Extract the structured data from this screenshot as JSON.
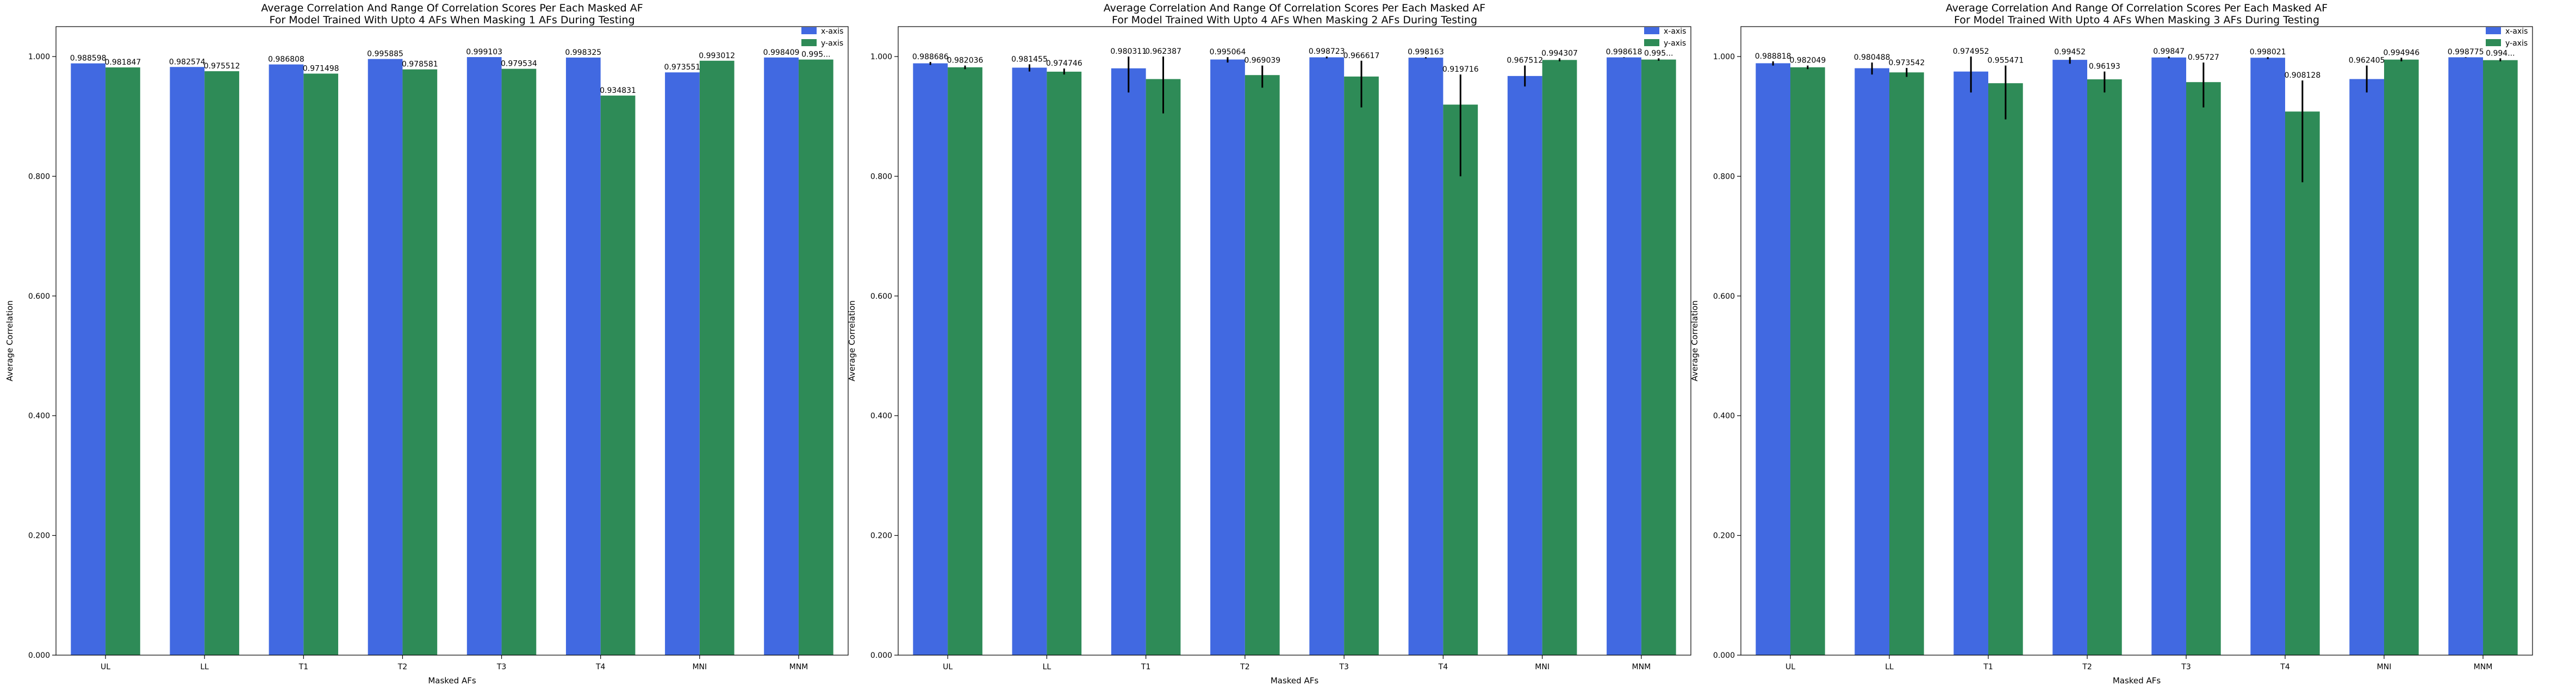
{
  "chart_data": [
    {
      "type": "bar",
      "title": "Average Correlation And Range Of Correlation Scores Per Each Masked AF",
      "subtitle": "For Model Trained With Upto 4 AFs When Masking 1 AFs During Testing",
      "xlabel": "Masked AFs",
      "ylabel": "Average Correlation",
      "ylim": [
        0,
        1.05
      ],
      "yticks": [
        "0.000",
        "0.200",
        "0.400",
        "0.600",
        "0.800",
        "1.000"
      ],
      "legend_position": "top-right",
      "categories": [
        "UL",
        "LL",
        "T1",
        "T2",
        "T3",
        "T4",
        "MNI",
        "MNM"
      ],
      "series": [
        {
          "name": "x-axis",
          "color": "#4169e1",
          "values": [
            0.988598,
            0.982574,
            0.986808,
            0.995885,
            0.999103,
            0.998325,
            0.973551,
            0.998409
          ],
          "labels": [
            "0.988598",
            "0.982574",
            "0.986808",
            "0.995885",
            "0.999103",
            "0.998325",
            "0.973551",
            "0.998409"
          ],
          "err_low": [
            0.988598,
            0.982574,
            0.986808,
            0.995885,
            0.999103,
            0.998325,
            0.973551,
            0.998409
          ],
          "err_high": [
            0.988598,
            0.982574,
            0.986808,
            0.995885,
            0.999103,
            0.998325,
            0.973551,
            0.998409
          ]
        },
        {
          "name": "y-axis",
          "color": "#2e8b57",
          "values": [
            0.981847,
            0.975512,
            0.971498,
            0.978581,
            0.979534,
            0.934831,
            0.993012,
            0.995
          ],
          "labels": [
            "0.981847",
            "0.975512",
            "0.971498",
            "0.978581",
            "0.979534",
            "0.934831",
            "0.993012",
            "0.995..."
          ],
          "err_low": [
            0.981847,
            0.975512,
            0.971498,
            0.978581,
            0.979534,
            0.934831,
            0.993012,
            0.995
          ],
          "err_high": [
            0.981847,
            0.975512,
            0.971498,
            0.978581,
            0.979534,
            0.934831,
            0.993012,
            0.995
          ]
        }
      ]
    },
    {
      "type": "bar",
      "title": "Average Correlation And Range Of Correlation Scores Per Each Masked AF",
      "subtitle": "For Model Trained With Upto 4 AFs When Masking 2 AFs During Testing",
      "xlabel": "Masked AFs",
      "ylabel": "Average Correlation",
      "ylim": [
        0,
        1.05
      ],
      "yticks": [
        "0.000",
        "0.200",
        "0.400",
        "0.600",
        "0.800",
        "1.000"
      ],
      "legend_position": "top-right",
      "categories": [
        "UL",
        "LL",
        "T1",
        "T2",
        "T3",
        "T4",
        "MNI",
        "MNM"
      ],
      "series": [
        {
          "name": "x-axis",
          "color": "#4169e1",
          "values": [
            0.988686,
            0.981455,
            0.980311,
            0.995064,
            0.998723,
            0.998163,
            0.967512,
            0.998618
          ],
          "labels": [
            "0.988686",
            "0.981455",
            "0.980311",
            "0.995064",
            "0.998723",
            "0.998163",
            "0.967512",
            "0.998618"
          ],
          "err_low": [
            0.986,
            0.975,
            0.94,
            0.99,
            0.997,
            0.997,
            0.95,
            0.998
          ],
          "err_high": [
            0.991,
            0.987,
            1.0,
            0.999,
            1.0,
            0.999,
            0.985,
            0.999
          ]
        },
        {
          "name": "y-axis",
          "color": "#2e8b57",
          "values": [
            0.982036,
            0.974746,
            0.962387,
            0.969039,
            0.966617,
            0.919716,
            0.994307,
            0.995
          ],
          "labels": [
            "0.982036",
            "0.974746",
            "0.962387",
            "0.969039",
            "0.966617",
            "0.919716",
            "0.994307",
            "0.995..."
          ],
          "err_low": [
            0.979,
            0.97,
            0.905,
            0.948,
            0.915,
            0.8,
            0.992,
            0.993
          ],
          "err_high": [
            0.985,
            0.98,
            1.0,
            0.985,
            0.993,
            0.97,
            0.997,
            0.997
          ]
        }
      ]
    },
    {
      "type": "bar",
      "title": "Average Correlation And Range Of Correlation Scores Per Each Masked AF",
      "subtitle": "For Model Trained With Upto 4 AFs When Masking 3 AFs During Testing",
      "xlabel": "Masked AFs",
      "ylabel": "Average Correlation",
      "ylim": [
        0,
        1.05
      ],
      "yticks": [
        "0.000",
        "0.200",
        "0.400",
        "0.600",
        "0.800",
        "1.000"
      ],
      "legend_position": "top-right",
      "categories": [
        "UL",
        "LL",
        "T1",
        "T2",
        "T3",
        "T4",
        "MNI",
        "MNM"
      ],
      "series": [
        {
          "name": "x-axis",
          "color": "#4169e1",
          "values": [
            0.988818,
            0.980488,
            0.974952,
            0.99452,
            0.99847,
            0.998021,
            0.962405,
            0.998775
          ],
          "labels": [
            "0.988818",
            "0.980488",
            "0.974952",
            "0.99452",
            "0.99847",
            "0.998021",
            "0.962405",
            "0.998775"
          ],
          "err_low": [
            0.985,
            0.97,
            0.94,
            0.988,
            0.997,
            0.996,
            0.94,
            0.998
          ],
          "err_high": [
            0.992,
            0.99,
            1.0,
            0.999,
            1.0,
            0.999,
            0.985,
            0.999
          ]
        },
        {
          "name": "y-axis",
          "color": "#2e8b57",
          "values": [
            0.982049,
            0.973542,
            0.955471,
            0.96193,
            0.95727,
            0.908128,
            0.994946,
            0.994
          ],
          "labels": [
            "0.982049",
            "0.973542",
            "0.955471",
            "0.96193",
            "0.95727",
            "0.908128",
            "0.994946",
            "0.994..."
          ],
          "err_low": [
            0.979,
            0.966,
            0.895,
            0.94,
            0.915,
            0.79,
            0.992,
            0.992
          ],
          "err_high": [
            0.985,
            0.981,
            0.985,
            0.975,
            0.99,
            0.96,
            0.998,
            0.997
          ]
        }
      ]
    }
  ]
}
